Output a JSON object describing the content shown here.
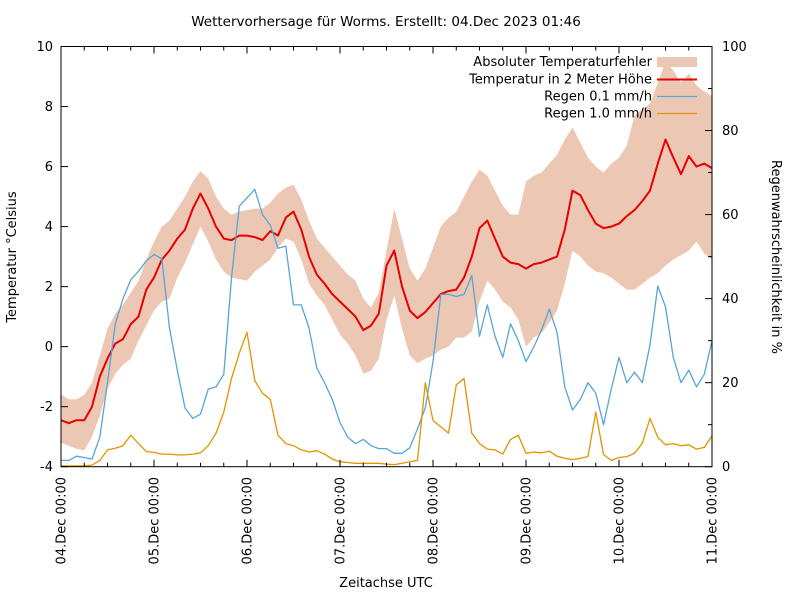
{
  "chart_data": {
    "type": "line",
    "title": "Wettervorhersage für Worms. Erstellt: 04.Dec 2023 01:46",
    "xlabel": "Zeitachse UTC",
    "ylabel_left": "Temperatur °Celsius",
    "ylabel_right": "Regenwahrscheinlichkeit in %",
    "left_min": -4,
    "left_max": 10,
    "left_ticks": [
      -4,
      -2,
      0,
      2,
      4,
      6,
      8,
      10
    ],
    "right_min": 0,
    "right_max": 100,
    "right_ticks": [
      0,
      20,
      40,
      60,
      80,
      100
    ],
    "right_minor_step": 10,
    "total_hours": 168,
    "x_hours_step": 2,
    "x_minor_hours": 6,
    "x_tick_labels": [
      "04.Dec 00:00",
      "05.Dec 00:00",
      "06.Dec 00:00",
      "07.Dec 00:00",
      "08.Dec 00:00",
      "09.Dec 00:00",
      "10.Dec 00:00",
      "11.Dec 00:00"
    ],
    "legend_position": "top-right-inside",
    "grid": false,
    "series": [
      {
        "name": "Absoluter Temperaturfehler",
        "type": "band",
        "axis": "left",
        "color": "#ecc8b4",
        "upper": [
          -1.6,
          -1.75,
          -1.75,
          -1.6,
          -1.2,
          -0.3,
          0.6,
          1.1,
          1.4,
          1.8,
          2.2,
          2.9,
          3.5,
          4.0,
          4.2,
          4.6,
          5.0,
          5.5,
          5.85,
          5.6,
          5.0,
          4.6,
          4.4,
          4.5,
          4.55,
          4.6,
          4.6,
          4.8,
          5.1,
          5.3,
          5.4,
          4.9,
          4.2,
          3.6,
          3.3,
          3.0,
          2.7,
          2.4,
          2.2,
          1.6,
          1.3,
          1.8,
          3.2,
          4.6,
          3.6,
          2.6,
          2.2,
          2.6,
          3.3,
          4.0,
          4.3,
          4.5,
          5.0,
          5.5,
          5.9,
          5.7,
          5.2,
          4.7,
          4.4,
          4.4,
          5.5,
          5.7,
          5.8,
          6.1,
          6.4,
          6.9,
          7.3,
          6.8,
          6.3,
          6.0,
          5.8,
          6.1,
          6.3,
          6.7,
          7.7,
          7.9,
          8.1,
          8.8,
          9.5,
          9.2,
          8.8,
          9.1,
          8.7,
          8.5,
          8.35
        ],
        "lower": [
          -3.2,
          -3.3,
          -3.4,
          -3.45,
          -3.0,
          -2.3,
          -1.4,
          -0.9,
          -0.6,
          -0.4,
          0.2,
          0.7,
          1.2,
          1.5,
          1.6,
          2.3,
          2.8,
          3.4,
          4.0,
          3.5,
          2.9,
          2.5,
          2.3,
          2.25,
          2.2,
          2.5,
          2.7,
          2.9,
          3.3,
          3.6,
          3.5,
          2.9,
          2.1,
          1.7,
          1.4,
          0.9,
          0.4,
          0.1,
          -0.3,
          -0.9,
          -0.8,
          -0.4,
          0.9,
          1.7,
          0.6,
          -0.3,
          -0.55,
          -0.4,
          -0.3,
          -0.1,
          0.0,
          0.3,
          0.3,
          0.5,
          1.5,
          2.2,
          1.9,
          1.5,
          1.3,
          0.9,
          0.0,
          0.3,
          0.45,
          0.8,
          1.2,
          2.1,
          3.2,
          3.0,
          2.7,
          2.5,
          2.45,
          2.3,
          2.1,
          1.9,
          1.9,
          2.1,
          2.3,
          2.45,
          2.7,
          2.9,
          3.05,
          3.2,
          3.5,
          3.1,
          2.9
        ]
      },
      {
        "name": "Temperatur in 2 Meter Höhe",
        "type": "line",
        "axis": "left",
        "color": "#e60000",
        "width": 2,
        "values": [
          -2.45,
          -2.55,
          -2.45,
          -2.45,
          -2.0,
          -1.0,
          -0.4,
          0.1,
          0.25,
          0.75,
          1.0,
          1.9,
          2.3,
          2.9,
          3.2,
          3.6,
          3.9,
          4.6,
          5.1,
          4.6,
          4.0,
          3.6,
          3.55,
          3.7,
          3.7,
          3.65,
          3.55,
          3.85,
          3.7,
          4.3,
          4.5,
          3.9,
          3.0,
          2.4,
          2.1,
          1.75,
          1.5,
          1.25,
          1.0,
          0.55,
          0.7,
          1.1,
          2.7,
          3.2,
          2.0,
          1.2,
          0.95,
          1.15,
          1.45,
          1.75,
          1.85,
          1.9,
          2.3,
          3.0,
          3.95,
          4.2,
          3.6,
          3.0,
          2.8,
          2.75,
          2.6,
          2.75,
          2.8,
          2.9,
          3.0,
          3.9,
          5.2,
          5.05,
          4.55,
          4.1,
          3.95,
          4.0,
          4.1,
          4.35,
          4.55,
          4.85,
          5.2,
          6.1,
          6.9,
          6.3,
          5.75,
          6.35,
          6.0,
          6.1,
          5.95
        ]
      },
      {
        "name": "Regen 0.1 mm/h",
        "type": "line",
        "axis": "right",
        "color": "#58a5d8",
        "width": 1.3,
        "values": [
          1.5,
          1.5,
          2.5,
          2.2,
          1.8,
          7,
          20,
          34,
          40,
          44.5,
          46.5,
          49,
          50.5,
          49.5,
          33,
          23,
          14,
          11.5,
          12.5,
          18.5,
          19,
          22,
          45,
          62,
          64,
          66,
          60,
          57.5,
          52,
          52.5,
          38.5,
          38.5,
          33,
          23.5,
          20,
          16,
          10.5,
          7,
          5.5,
          6.5,
          5,
          4.3,
          4.3,
          3.2,
          3.2,
          4.5,
          9,
          14,
          25,
          41,
          41,
          40.5,
          41,
          45.5,
          31,
          38.5,
          31,
          26,
          34,
          30,
          25,
          28.5,
          32.5,
          37.5,
          32,
          19,
          13.5,
          16,
          20,
          17.5,
          10,
          18.5,
          26,
          20,
          22.5,
          20,
          29,
          43,
          38,
          26,
          20,
          23,
          19,
          22,
          30
        ]
      },
      {
        "name": "Regen 1.0 mm/h",
        "type": "line",
        "axis": "right",
        "color": "#e29400",
        "width": 1.3,
        "values": [
          0.2,
          0.2,
          0.2,
          0.2,
          0.4,
          1.5,
          4,
          4.4,
          5,
          7.5,
          5.5,
          3.6,
          3.4,
          3.0,
          3.0,
          2.8,
          2.8,
          3.0,
          3.3,
          5.0,
          8,
          13,
          21,
          27,
          32,
          20.5,
          17.5,
          16,
          7.5,
          5.5,
          5,
          4,
          3.5,
          3.8,
          3.0,
          1.8,
          1.2,
          1.0,
          0.8,
          0.8,
          0.8,
          0.8,
          0.6,
          0.5,
          0.8,
          1.2,
          1.5,
          20,
          11,
          9.5,
          8,
          19.5,
          21,
          8,
          5.5,
          4.2,
          4.0,
          3.0,
          6.5,
          7.5,
          3.2,
          3.5,
          3.3,
          3.7,
          2.5,
          2.0,
          1.7,
          2.0,
          2.4,
          13,
          2.9,
          1.5,
          2.2,
          2.4,
          3.2,
          5.6,
          11.5,
          7,
          5.2,
          5.5,
          5,
          5.2,
          4.2,
          4.6,
          7.3
        ]
      }
    ]
  }
}
